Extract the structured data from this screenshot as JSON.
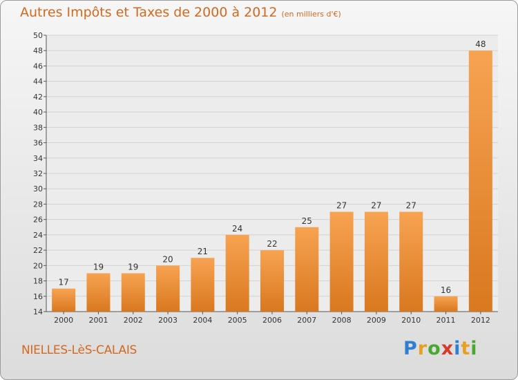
{
  "header": {
    "title": "Autres Impôts et Taxes de 2000 à 2012",
    "subtitle": "(en milliers d'€)"
  },
  "commune": "NIELLES-LèS-CALAIS",
  "logo": {
    "letters": [
      {
        "char": "P",
        "color": "#2f7fd0"
      },
      {
        "char": "r",
        "color": "#e8a020"
      },
      {
        "char": "o",
        "color": "#4aa832"
      },
      {
        "char": "x",
        "color": "#d83a2a"
      },
      {
        "char": "i",
        "color": "#2f7fd0"
      },
      {
        "char": "t",
        "color": "#e8a020"
      },
      {
        "char": "i",
        "color": "#4aa832"
      }
    ]
  },
  "colors": {
    "bar_light": "#f7a352",
    "bar_dark": "#d9781f",
    "title": "#d2691e"
  },
  "chart_data": {
    "type": "bar",
    "categories": [
      "2000",
      "2001",
      "2002",
      "2003",
      "2004",
      "2005",
      "2006",
      "2007",
      "2008",
      "2009",
      "2010",
      "2011",
      "2012"
    ],
    "values": [
      17,
      19,
      19,
      20,
      21,
      24,
      22,
      25,
      27,
      27,
      27,
      16,
      48
    ],
    "title": "Autres Impôts et Taxes de 2000 à 2012",
    "subtitle": "(en milliers d'€)",
    "xlabel": "",
    "ylabel": "",
    "ylim": [
      14,
      50
    ],
    "yticks": [
      14,
      16,
      18,
      20,
      22,
      24,
      26,
      28,
      30,
      32,
      34,
      36,
      38,
      40,
      42,
      44,
      46,
      48,
      50
    ],
    "grid": true,
    "data_labels": true
  }
}
